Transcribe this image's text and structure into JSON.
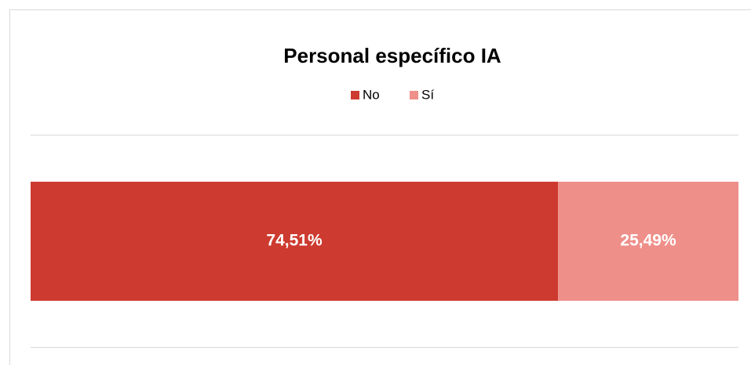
{
  "chart_data": {
    "type": "bar",
    "orientation": "horizontal",
    "stacked": true,
    "title": "Personal específico IA",
    "categories": [
      null
    ],
    "series": [
      {
        "name": "No",
        "color": "#cd3a2f",
        "values": [
          74.51
        ],
        "value_labels": [
          "74,51%"
        ]
      },
      {
        "name": "Sí",
        "color": "#ef8f8a",
        "values": [
          25.49
        ],
        "value_labels": [
          "25,49%"
        ]
      }
    ],
    "xlim": [
      0,
      100
    ],
    "legend": "top"
  }
}
